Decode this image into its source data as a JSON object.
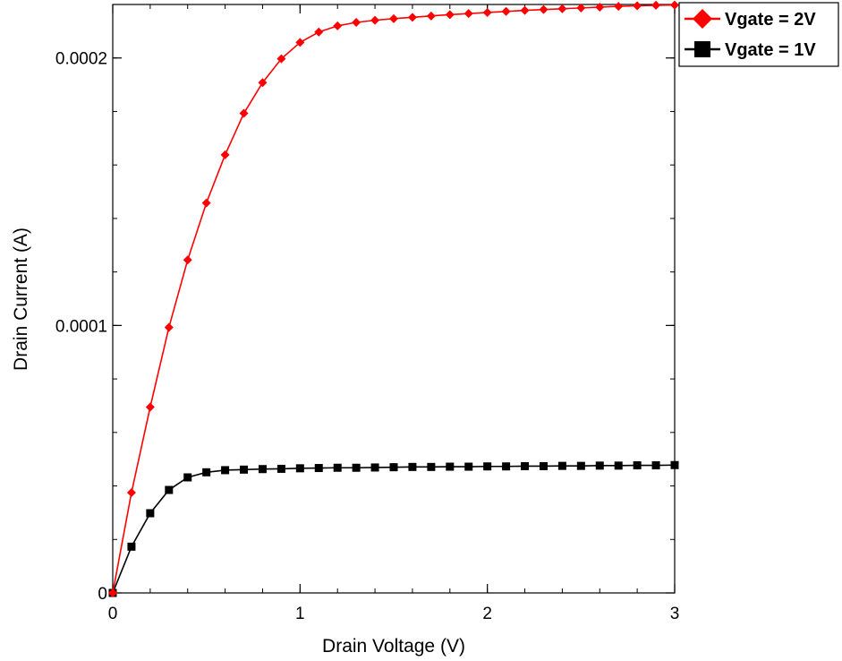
{
  "chart_data": {
    "type": "line",
    "title": "",
    "xlabel": "Drain Voltage (V)",
    "ylabel": "Drain Current (A)",
    "xlim": [
      0,
      3
    ],
    "ylim": [
      0,
      0.00022
    ],
    "x_ticks": [
      {
        "value": 0,
        "label": "0"
      },
      {
        "value": 1,
        "label": "1"
      },
      {
        "value": 2,
        "label": "2"
      },
      {
        "value": 3,
        "label": "3"
      }
    ],
    "y_ticks": [
      {
        "value": 0,
        "label": "0"
      },
      {
        "value": 0.0001,
        "label": "0.0001"
      },
      {
        "value": 0.0002,
        "label": "0.0002"
      }
    ],
    "x_minor_step": 0.2,
    "y_minor_step": 2e-05,
    "grid": false,
    "legend_position": "top-right outside",
    "x": [
      0,
      0.1,
      0.2,
      0.3,
      0.4,
      0.5,
      0.6,
      0.7,
      0.8,
      0.9,
      1.0,
      1.1,
      1.2,
      1.3,
      1.4,
      1.5,
      1.6,
      1.7,
      1.8,
      1.9,
      2.0,
      2.1,
      2.2,
      2.3,
      2.4,
      2.5,
      2.6,
      2.7,
      2.8,
      2.9,
      3.0
    ],
    "series": [
      {
        "name": "Vgate = 2V",
        "color": "#ff0000",
        "marker": "diamond",
        "values": [
          0,
          3.75e-05,
          6.95e-05,
          9.93e-05,
          0.0001245,
          0.0001458,
          0.0001638,
          0.0001793,
          0.0001908,
          0.0001997,
          0.0002058,
          0.0002097,
          0.000212,
          0.0002133,
          0.0002141,
          0.0002147,
          0.0002152,
          0.0002157,
          0.0002162,
          0.0002166,
          0.000217,
          0.0002174,
          0.0002178,
          0.0002181,
          0.0002184,
          0.0002187,
          0.000219,
          0.0002193,
          0.0002195,
          0.0002197,
          0.0002198
        ]
      },
      {
        "name": "Vgate = 1V",
        "color": "#000000",
        "marker": "square",
        "values": [
          0,
          1.73e-05,
          2.98e-05,
          3.85e-05,
          4.32e-05,
          4.51e-05,
          4.59e-05,
          4.61e-05,
          4.63e-05,
          4.64e-05,
          4.66e-05,
          4.67e-05,
          4.68e-05,
          4.68e-05,
          4.69e-05,
          4.7e-05,
          4.71e-05,
          4.71e-05,
          4.72e-05,
          4.72e-05,
          4.73e-05,
          4.73e-05,
          4.74e-05,
          4.74e-05,
          4.75e-05,
          4.75e-05,
          4.76e-05,
          4.76e-05,
          4.77e-05,
          4.77e-05,
          4.78e-05
        ]
      }
    ]
  }
}
